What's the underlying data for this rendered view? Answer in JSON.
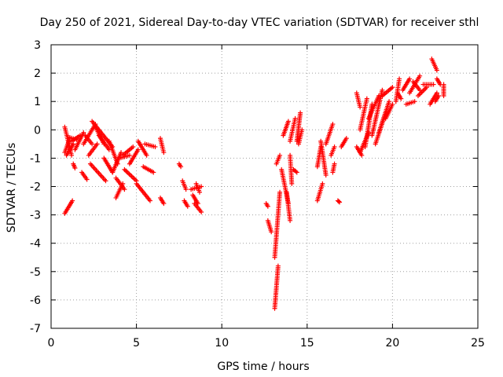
{
  "chart_data": {
    "type": "scatter",
    "title": "Day 250 of 2021, Sidereal Day-to-day VTEC variation (SDTVAR) for receiver sthl",
    "xlabel": "GPS time / hours",
    "ylabel": "SDTVAR / TECUs",
    "xlim": [
      0,
      25
    ],
    "ylim": [
      -7,
      3
    ],
    "xticks": [
      0,
      5,
      10,
      15,
      20,
      25
    ],
    "yticks": [
      -7,
      -6,
      -5,
      -4,
      -3,
      -2,
      -1,
      0,
      1,
      2,
      3
    ],
    "grid": true,
    "marker": "+",
    "marker_color": "#ff0000",
    "series": [
      {
        "name": "SDTVAR",
        "segments": [
          [
            0.8,
            -2.95,
            1.25,
            -2.5
          ],
          [
            0.8,
            0.1,
            1.2,
            -0.9
          ],
          [
            0.8,
            -0.8,
            1.1,
            -0.3
          ],
          [
            0.9,
            -0.9,
            1.3,
            -0.5
          ],
          [
            1.0,
            -0.25,
            1.5,
            -0.35
          ],
          [
            1.2,
            -0.4,
            1.7,
            -0.2
          ],
          [
            1.3,
            -1.2,
            1.4,
            -1.35
          ],
          [
            1.4,
            -0.7,
            1.9,
            -0.1
          ],
          [
            1.8,
            -1.5,
            2.1,
            -1.75
          ],
          [
            1.9,
            -0.5,
            2.6,
            0.2
          ],
          [
            2.0,
            -0.2,
            2.4,
            -0.5
          ],
          [
            2.2,
            -0.9,
            2.7,
            -0.5
          ],
          [
            2.3,
            -1.2,
            3.2,
            -1.8
          ],
          [
            2.4,
            0.3,
            3.6,
            -0.6
          ],
          [
            2.6,
            0.1,
            3.1,
            -0.5
          ],
          [
            2.8,
            -0.2,
            3.4,
            -0.7
          ],
          [
            3.1,
            -1.0,
            3.6,
            -1.5
          ],
          [
            3.4,
            -0.4,
            3.9,
            -1.2
          ],
          [
            3.6,
            -1.5,
            4.1,
            -0.8
          ],
          [
            3.8,
            -2.4,
            4.2,
            -1.9
          ],
          [
            3.8,
            -1.7,
            4.3,
            -2.1
          ],
          [
            4.0,
            -1.0,
            4.6,
            -0.9
          ],
          [
            4.2,
            -0.9,
            4.8,
            -0.6
          ],
          [
            4.3,
            -1.4,
            5.0,
            -1.8
          ],
          [
            4.6,
            -1.2,
            5.1,
            -0.7
          ],
          [
            5.0,
            -1.9,
            5.8,
            -2.5
          ],
          [
            5.1,
            -0.4,
            5.6,
            -0.9
          ],
          [
            5.4,
            -1.3,
            6.0,
            -1.5
          ],
          [
            5.5,
            -0.5,
            6.1,
            -0.6
          ],
          [
            6.4,
            -2.4,
            6.6,
            -2.6
          ],
          [
            6.4,
            -0.3,
            6.6,
            -0.8
          ],
          [
            7.5,
            -1.2,
            7.6,
            -1.3
          ],
          [
            7.7,
            -1.8,
            7.9,
            -2.1
          ],
          [
            7.8,
            -2.5,
            8.0,
            -2.7
          ],
          [
            8.2,
            -2.1,
            8.8,
            -2.0
          ],
          [
            8.3,
            -2.3,
            8.6,
            -2.6
          ],
          [
            8.4,
            -2.6,
            8.8,
            -2.9
          ],
          [
            8.5,
            -1.9,
            8.7,
            -2.2
          ],
          [
            12.6,
            -2.6,
            12.7,
            -2.7
          ],
          [
            12.7,
            -3.2,
            12.9,
            -3.6
          ],
          [
            13.1,
            -6.3,
            13.3,
            -4.8
          ],
          [
            13.1,
            -4.5,
            13.4,
            -2.2
          ],
          [
            13.2,
            -1.2,
            13.4,
            -0.9
          ],
          [
            13.5,
            -1.4,
            13.9,
            -2.6
          ],
          [
            13.6,
            -0.2,
            13.9,
            0.3
          ],
          [
            13.8,
            -2.2,
            14.0,
            -3.2
          ],
          [
            14.0,
            -0.9,
            14.1,
            -1.9
          ],
          [
            14.0,
            -0.4,
            14.3,
            0.4
          ],
          [
            14.2,
            -1.4,
            14.4,
            -1.5
          ],
          [
            14.4,
            -0.4,
            14.6,
            0.6
          ],
          [
            14.5,
            -0.5,
            14.7,
            0.0
          ],
          [
            15.6,
            -2.5,
            15.9,
            -1.9
          ],
          [
            15.6,
            -1.3,
            15.8,
            -0.6
          ],
          [
            15.8,
            -0.4,
            16.1,
            -1.6
          ],
          [
            16.1,
            -0.5,
            16.5,
            0.2
          ],
          [
            16.4,
            -0.9,
            16.6,
            -0.6
          ],
          [
            16.5,
            -1.5,
            16.6,
            -1.2
          ],
          [
            16.8,
            -2.5,
            16.9,
            -2.55
          ],
          [
            17.0,
            -0.6,
            17.3,
            -0.3
          ],
          [
            17.9,
            1.3,
            18.1,
            0.8
          ],
          [
            17.9,
            -0.6,
            18.2,
            -0.9
          ],
          [
            18.1,
            -0.8,
            18.6,
            -0.1
          ],
          [
            18.1,
            0.0,
            18.5,
            1.1
          ],
          [
            18.4,
            -0.6,
            18.8,
            0.9
          ],
          [
            18.6,
            0.4,
            19.2,
            1.2
          ],
          [
            18.8,
            -0.2,
            19.4,
            1.4
          ],
          [
            19.0,
            -0.5,
            19.6,
            0.6
          ],
          [
            19.2,
            -0.1,
            19.8,
            1.0
          ],
          [
            19.4,
            1.2,
            20.0,
            1.5
          ],
          [
            19.6,
            0.4,
            20.0,
            0.9
          ],
          [
            20.2,
            1.0,
            20.4,
            1.8
          ],
          [
            20.3,
            1.3,
            20.5,
            1.1
          ],
          [
            20.6,
            1.4,
            21.0,
            1.8
          ],
          [
            20.8,
            0.9,
            21.3,
            1.0
          ],
          [
            21.0,
            1.3,
            21.6,
            1.9
          ],
          [
            21.2,
            1.7,
            21.6,
            1.4
          ],
          [
            21.5,
            1.2,
            22.0,
            1.5
          ],
          [
            21.8,
            1.6,
            22.4,
            1.6
          ],
          [
            22.2,
            0.9,
            22.6,
            1.3
          ],
          [
            22.3,
            2.5,
            22.6,
            2.1
          ],
          [
            22.5,
            1.0,
            22.7,
            1.2
          ],
          [
            22.6,
            1.8,
            22.8,
            1.6
          ],
          [
            23.0,
            1.2,
            23.0,
            1.6
          ]
        ]
      }
    ]
  }
}
